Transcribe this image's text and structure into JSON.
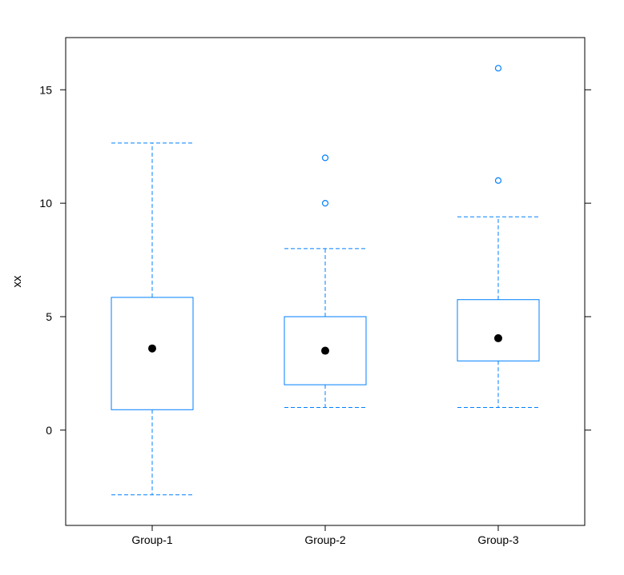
{
  "chart_data": {
    "type": "box",
    "ylabel": "xx",
    "xlabel": "",
    "ylim": [
      -4.2,
      17.3
    ],
    "yticks": [
      0,
      5,
      10,
      15
    ],
    "categories": [
      "Group-1",
      "Group-2",
      "Group-3"
    ],
    "boxes": [
      {
        "whisker_low": -2.85,
        "q1": 0.9,
        "median": 3.6,
        "q3": 5.85,
        "whisker_high": 12.65,
        "outliers": []
      },
      {
        "whisker_low": 1.0,
        "q1": 2.0,
        "median": 3.5,
        "q3": 5.0,
        "whisker_high": 8.0,
        "outliers": [
          10.0,
          12.0
        ]
      },
      {
        "whisker_low": 1.0,
        "q1": 3.05,
        "median": 4.05,
        "q3": 5.75,
        "whisker_high": 9.4,
        "outliers": [
          11.0,
          15.95
        ]
      }
    ],
    "colors": {
      "box": "#0080ff",
      "median": "#000000",
      "frame": "#000000"
    }
  }
}
